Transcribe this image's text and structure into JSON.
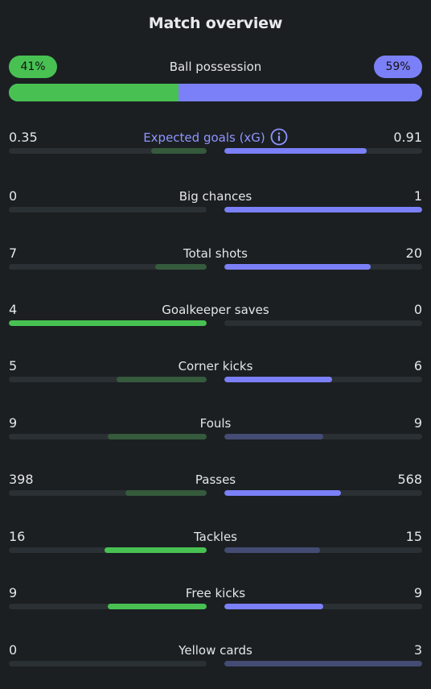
{
  "title": "Match overview",
  "colors": {
    "home_strong": "#48c152",
    "home_weak": "#355a3c",
    "away_strong": "#7b80f8",
    "away_weak": "#444c73",
    "track": "#2a3033",
    "accent_text": "#8f95ff"
  },
  "possession": {
    "label": "Ball possession",
    "home": "41%",
    "away": "59%",
    "home_pct": 41
  },
  "stats": [
    {
      "label": "Expected goals (xG)",
      "home": "0.35",
      "away": "0.91",
      "home_fill": 0.28,
      "away_fill": 0.72,
      "home_style": "weak",
      "away_style": "strong",
      "accent": true,
      "info": true
    },
    {
      "label": "Big chances",
      "home": "0",
      "away": "1",
      "home_fill": 0,
      "away_fill": 1.0,
      "home_style": "weak",
      "away_style": "strong"
    },
    {
      "label": "Total shots",
      "home": "7",
      "away": "20",
      "home_fill": 0.26,
      "away_fill": 0.74,
      "home_style": "weak",
      "away_style": "strong"
    },
    {
      "label": "Goalkeeper saves",
      "home": "4",
      "away": "0",
      "home_fill": 1.0,
      "away_fill": 0,
      "home_style": "strong",
      "away_style": "weak"
    },
    {
      "label": "Corner kicks",
      "home": "5",
      "away": "6",
      "home_fill": 0.455,
      "away_fill": 0.545,
      "home_style": "weak",
      "away_style": "strong"
    },
    {
      "label": "Fouls",
      "home": "9",
      "away": "9",
      "home_fill": 0.5,
      "away_fill": 0.5,
      "home_style": "weak",
      "away_style": "weak"
    },
    {
      "label": "Passes",
      "home": "398",
      "away": "568",
      "home_fill": 0.41,
      "away_fill": 0.59,
      "home_style": "weak",
      "away_style": "strong"
    },
    {
      "label": "Tackles",
      "home": "16",
      "away": "15",
      "home_fill": 0.516,
      "away_fill": 0.484,
      "home_style": "strong",
      "away_style": "weak"
    },
    {
      "label": "Free kicks",
      "home": "9",
      "away": "9",
      "home_fill": 0.5,
      "away_fill": 0.5,
      "home_style": "strong",
      "away_style": "strong"
    },
    {
      "label": "Yellow cards",
      "home": "0",
      "away": "3",
      "home_fill": 0,
      "away_fill": 1.0,
      "home_style": "weak",
      "away_style": "weak"
    }
  ]
}
